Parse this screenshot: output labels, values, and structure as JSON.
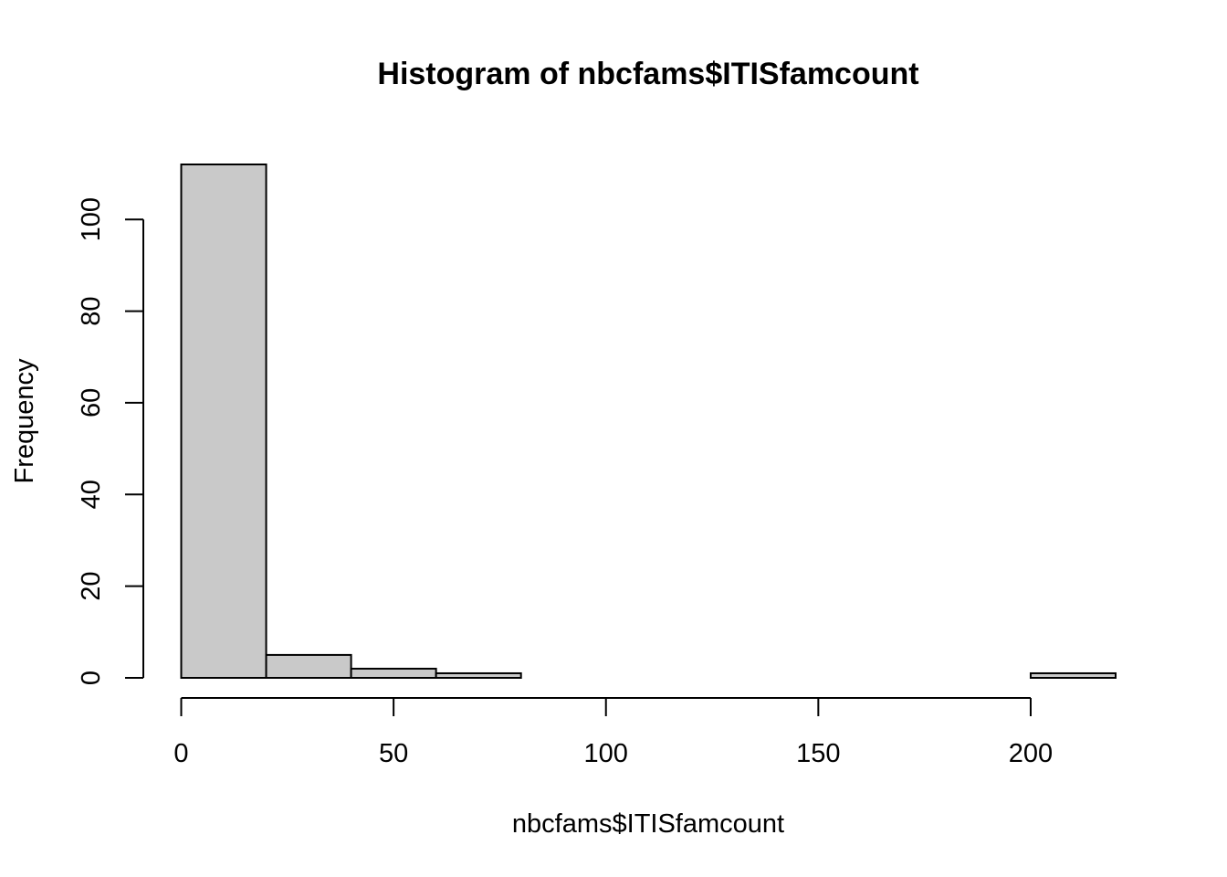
{
  "chart_data": {
    "type": "bar",
    "title": "Histogram of nbcfams$ITISfamcount",
    "xlabel": "nbcfams$ITISfamcount",
    "ylabel": "Frequency",
    "bins": [
      {
        "start": 0,
        "end": 20,
        "count": 112
      },
      {
        "start": 20,
        "end": 40,
        "count": 5
      },
      {
        "start": 40,
        "end": 60,
        "count": 2
      },
      {
        "start": 60,
        "end": 80,
        "count": 1
      },
      {
        "start": 80,
        "end": 100,
        "count": 0
      },
      {
        "start": 100,
        "end": 120,
        "count": 0
      },
      {
        "start": 120,
        "end": 140,
        "count": 0
      },
      {
        "start": 140,
        "end": 160,
        "count": 0
      },
      {
        "start": 160,
        "end": 180,
        "count": 0
      },
      {
        "start": 180,
        "end": 200,
        "count": 0
      },
      {
        "start": 200,
        "end": 220,
        "count": 1
      }
    ],
    "xlim": [
      0,
      220
    ],
    "ylim": [
      0,
      112
    ],
    "xticks": [
      0,
      50,
      100,
      150,
      200
    ],
    "yticks": [
      0,
      20,
      40,
      60,
      80,
      100
    ],
    "grid": false,
    "colors": {
      "bar_fill": "#c9c9c9",
      "bar_stroke": "#000000"
    }
  }
}
